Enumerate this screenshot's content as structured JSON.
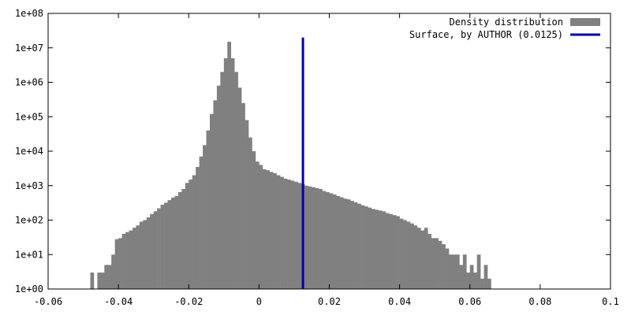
{
  "chart_data": {
    "type": "bar",
    "title": "",
    "xlabel": "",
    "ylabel": "",
    "xlim": [
      -0.06,
      0.1
    ],
    "ylim": [
      1,
      100000000
    ],
    "y_scale": "log",
    "grid": false,
    "legend_position": "top-right",
    "x_ticks": [
      {
        "value": -0.06,
        "label": "-0.06"
      },
      {
        "value": -0.04,
        "label": "-0.04"
      },
      {
        "value": -0.02,
        "label": "-0.02"
      },
      {
        "value": 0,
        "label": "0"
      },
      {
        "value": 0.02,
        "label": "0.02"
      },
      {
        "value": 0.04,
        "label": "0.04"
      },
      {
        "value": 0.06,
        "label": "0.06"
      },
      {
        "value": 0.08,
        "label": "0.08"
      },
      {
        "value": 0.1,
        "label": "0.1"
      }
    ],
    "y_ticks": [
      {
        "value": 1,
        "label": "1e+00"
      },
      {
        "value": 10,
        "label": "1e+01"
      },
      {
        "value": 100,
        "label": "1e+02"
      },
      {
        "value": 1000,
        "label": "1e+03"
      },
      {
        "value": 10000,
        "label": "1e+04"
      },
      {
        "value": 100000,
        "label": "1e+05"
      },
      {
        "value": 1000000,
        "label": "1e+06"
      },
      {
        "value": 10000000,
        "label": "1e+07"
      },
      {
        "value": 100000000,
        "label": "1e+08"
      }
    ],
    "bin_width": 0.001,
    "series": [
      {
        "name": "Density distribution",
        "kind": "histogram",
        "color": "#808080",
        "x_start": -0.048,
        "values": [
          3,
          1,
          3,
          3,
          5,
          5,
          10,
          28,
          30,
          40,
          45,
          50,
          60,
          70,
          90,
          100,
          120,
          150,
          180,
          220,
          280,
          320,
          380,
          450,
          500,
          650,
          800,
          1200,
          1500,
          2000,
          3500,
          7000,
          15000,
          40000,
          120000,
          300000,
          800000,
          2000000,
          5000000,
          15000000,
          5000000,
          2000000,
          700000,
          250000,
          80000,
          25000,
          10000,
          5000,
          4000,
          3000,
          2800,
          2500,
          2300,
          2000,
          1800,
          1600,
          1500,
          1400,
          1300,
          1200,
          1100,
          1000,
          950,
          900,
          850,
          800,
          700,
          650,
          600,
          550,
          500,
          460,
          420,
          400,
          360,
          330,
          300,
          270,
          250,
          230,
          210,
          200,
          190,
          180,
          160,
          150,
          140,
          130,
          110,
          100,
          90,
          80,
          70,
          60,
          50,
          60,
          40,
          30,
          30,
          25,
          20,
          15,
          10,
          10,
          10,
          5,
          10,
          3,
          5,
          3,
          10,
          2,
          5,
          2
        ]
      },
      {
        "name": "Surface, by AUTHOR (0.0125)",
        "kind": "vertical-line",
        "color": "#0000aa",
        "x": 0.0125,
        "y_range": [
          1,
          20000000
        ]
      }
    ]
  }
}
